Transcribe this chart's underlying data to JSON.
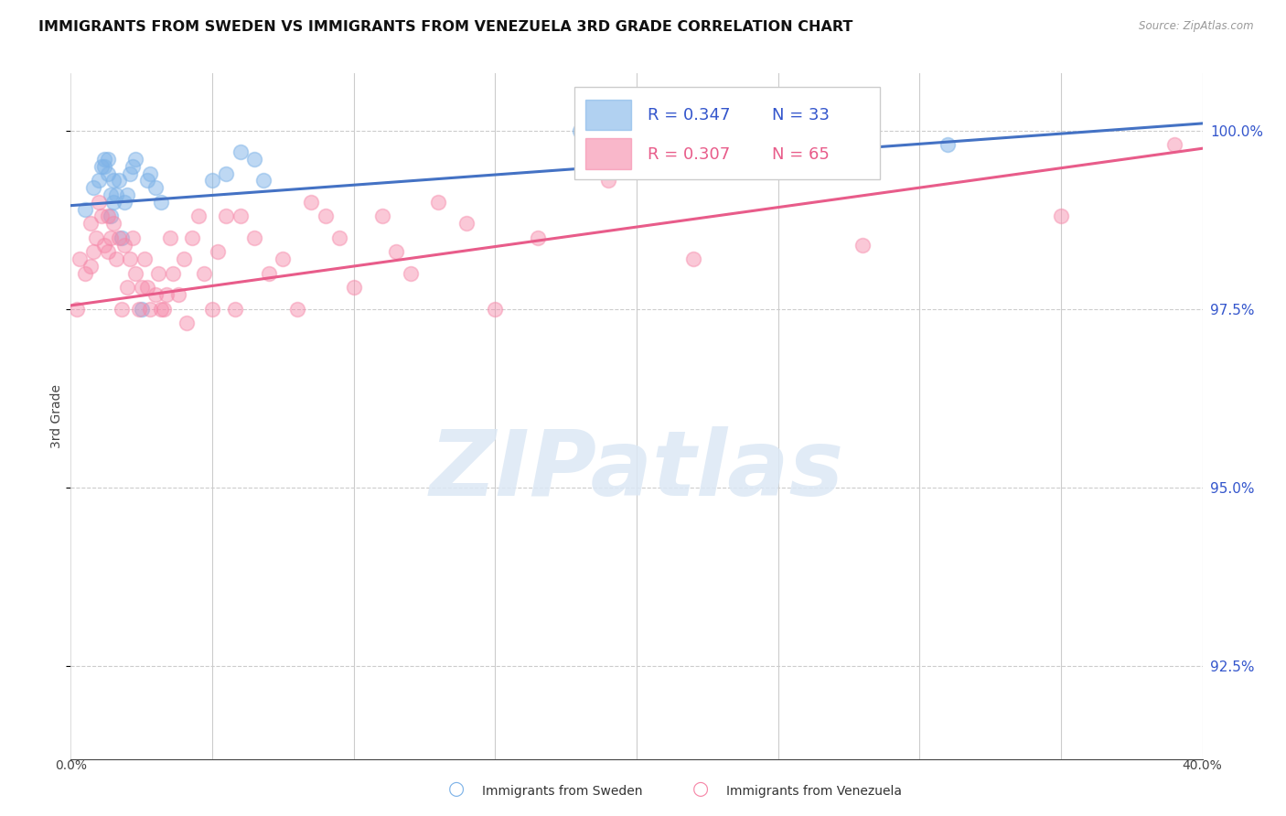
{
  "title": "IMMIGRANTS FROM SWEDEN VS IMMIGRANTS FROM VENEZUELA 3RD GRADE CORRELATION CHART",
  "source": "Source: ZipAtlas.com",
  "ylabel": "3rd Grade",
  "ytick_labels": [
    "100.0%",
    "97.5%",
    "95.0%",
    "92.5%"
  ],
  "ytick_values": [
    1.0,
    0.975,
    0.95,
    0.925
  ],
  "xlim": [
    0.0,
    0.4
  ],
  "ylim": [
    0.912,
    1.008
  ],
  "legend_r_sweden": "R = 0.347",
  "legend_n_sweden": "N = 33",
  "legend_r_venezuela": "R = 0.307",
  "legend_n_venezuela": "N = 65",
  "sweden_color": "#7EB3E8",
  "venezuela_color": "#F687A8",
  "sweden_line_color": "#4472C4",
  "venezuela_line_color": "#E85C8A",
  "sweden_scatter_x": [
    0.005,
    0.008,
    0.01,
    0.011,
    0.012,
    0.012,
    0.013,
    0.013,
    0.014,
    0.014,
    0.015,
    0.015,
    0.016,
    0.017,
    0.018,
    0.019,
    0.02,
    0.021,
    0.022,
    0.023,
    0.025,
    0.027,
    0.028,
    0.03,
    0.032,
    0.05,
    0.055,
    0.06,
    0.065,
    0.068,
    0.18,
    0.25,
    0.31
  ],
  "sweden_scatter_y": [
    0.989,
    0.992,
    0.993,
    0.995,
    0.996,
    0.995,
    0.994,
    0.996,
    0.988,
    0.991,
    0.99,
    0.993,
    0.991,
    0.993,
    0.985,
    0.99,
    0.991,
    0.994,
    0.995,
    0.996,
    0.975,
    0.993,
    0.994,
    0.992,
    0.99,
    0.993,
    0.994,
    0.997,
    0.996,
    0.993,
    1.0,
    0.996,
    0.998
  ],
  "venezuela_scatter_x": [
    0.002,
    0.003,
    0.005,
    0.007,
    0.007,
    0.008,
    0.009,
    0.01,
    0.011,
    0.012,
    0.013,
    0.013,
    0.014,
    0.015,
    0.016,
    0.017,
    0.018,
    0.019,
    0.02,
    0.021,
    0.022,
    0.023,
    0.024,
    0.025,
    0.026,
    0.027,
    0.028,
    0.03,
    0.031,
    0.032,
    0.033,
    0.034,
    0.035,
    0.036,
    0.038,
    0.04,
    0.041,
    0.043,
    0.045,
    0.047,
    0.05,
    0.052,
    0.055,
    0.058,
    0.06,
    0.065,
    0.07,
    0.075,
    0.08,
    0.085,
    0.09,
    0.095,
    0.1,
    0.11,
    0.115,
    0.12,
    0.13,
    0.14,
    0.15,
    0.165,
    0.19,
    0.22,
    0.28,
    0.35,
    0.39
  ],
  "venezuela_scatter_y": [
    0.975,
    0.982,
    0.98,
    0.987,
    0.981,
    0.983,
    0.985,
    0.99,
    0.988,
    0.984,
    0.988,
    0.983,
    0.985,
    0.987,
    0.982,
    0.985,
    0.975,
    0.984,
    0.978,
    0.982,
    0.985,
    0.98,
    0.975,
    0.978,
    0.982,
    0.978,
    0.975,
    0.977,
    0.98,
    0.975,
    0.975,
    0.977,
    0.985,
    0.98,
    0.977,
    0.982,
    0.973,
    0.985,
    0.988,
    0.98,
    0.975,
    0.983,
    0.988,
    0.975,
    0.988,
    0.985,
    0.98,
    0.982,
    0.975,
    0.99,
    0.988,
    0.985,
    0.978,
    0.988,
    0.983,
    0.98,
    0.99,
    0.987,
    0.975,
    0.985,
    0.993,
    0.982,
    0.984,
    0.988,
    0.998
  ],
  "sweden_trend_x": [
    0.0,
    0.4
  ],
  "sweden_trend_y": [
    0.9895,
    1.001
  ],
  "venezuela_trend_x": [
    0.0,
    0.4
  ],
  "venezuela_trend_y": [
    0.9755,
    0.9975
  ],
  "watermark_text": "ZIPatlas",
  "background_color": "#ffffff",
  "grid_color": "#cccccc",
  "title_fontsize": 11.5,
  "tick_fontsize": 10,
  "legend_fontsize": 13
}
